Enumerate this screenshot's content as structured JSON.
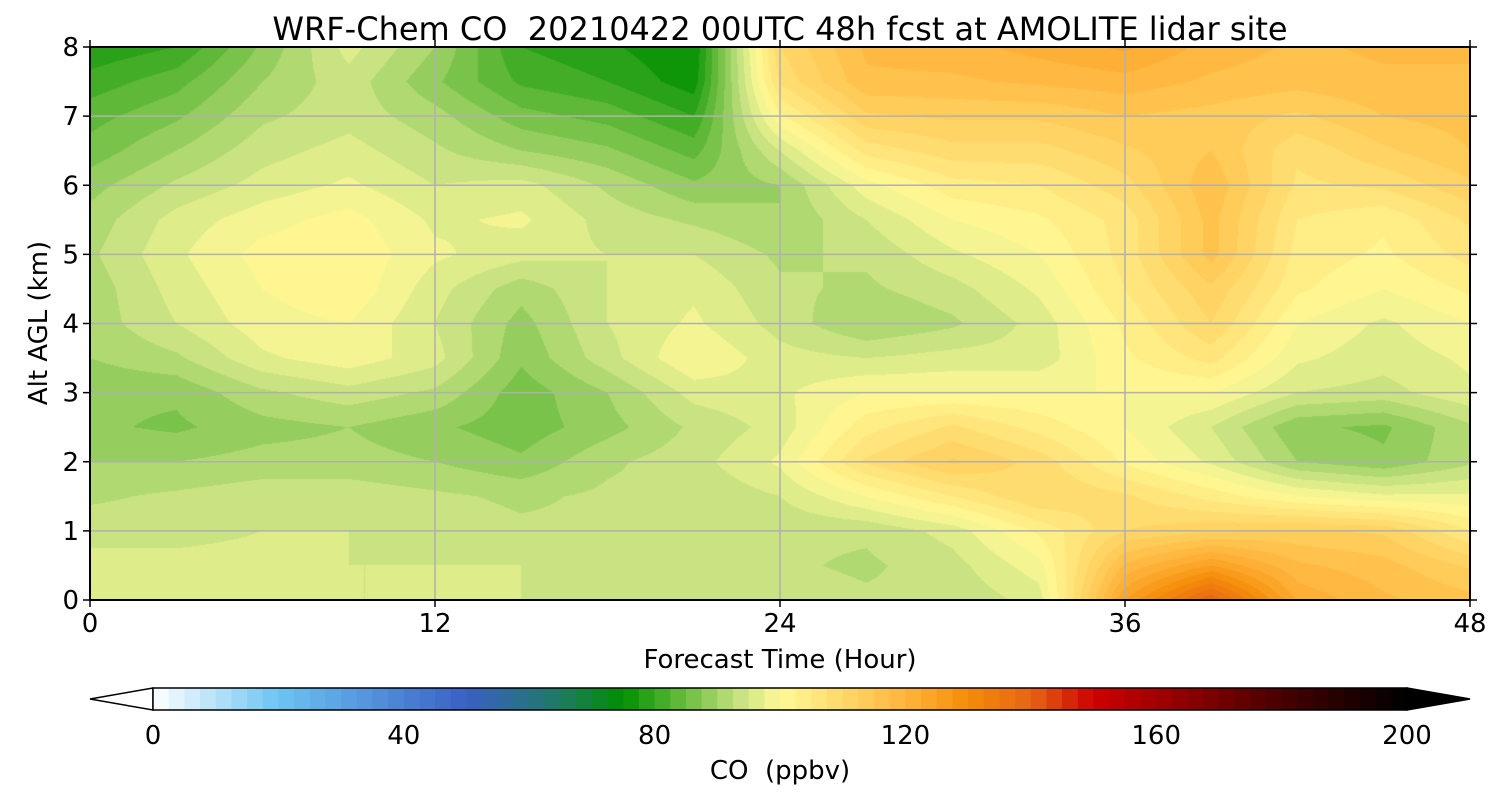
{
  "chart_data": {
    "type": "heatmap",
    "title": "WRF-Chem CO  20210422 00UTC 48h fcst at AMOLITE lidar site",
    "xlabel": "Forecast Time (Hour)",
    "ylabel": "Alt AGL (km)",
    "xlim": [
      0,
      48
    ],
    "ylim": [
      0,
      8
    ],
    "xticks": [
      0,
      12,
      24,
      36,
      48
    ],
    "yticks": [
      0,
      1,
      2,
      3,
      4,
      5,
      6,
      7,
      8
    ],
    "grid": true,
    "x": [
      0,
      3,
      6,
      9,
      12,
      15,
      18,
      21,
      24,
      27,
      30,
      33,
      36,
      39,
      42,
      45,
      48
    ],
    "y": [
      0,
      0.5,
      1,
      1.5,
      2,
      2.5,
      3,
      3.5,
      4,
      4.5,
      5,
      5.5,
      6,
      6.5,
      7,
      7.5,
      8
    ],
    "z": [
      [
        96,
        96,
        96,
        95,
        95,
        95,
        95,
        94,
        94,
        93,
        93,
        96,
        125,
        140,
        122,
        118,
        116
      ],
      [
        96,
        96,
        96,
        95,
        95,
        95,
        94,
        94,
        93,
        92,
        94,
        99,
        118,
        125,
        118,
        116,
        112
      ],
      [
        94,
        94,
        95,
        95,
        94,
        93,
        93,
        93,
        93,
        93,
        96,
        103,
        110,
        112,
        113,
        112,
        105
      ],
      [
        92,
        93,
        94,
        94,
        93,
        92,
        93,
        93,
        95,
        100,
        105,
        110,
        108,
        104,
        100,
        98,
        98
      ],
      [
        90,
        90,
        91,
        91,
        90,
        88,
        92,
        94,
        98,
        108,
        113,
        109,
        102,
        97,
        90,
        88,
        92
      ],
      [
        88,
        87,
        89,
        90,
        88,
        86,
        89,
        93,
        96,
        104,
        108,
        104,
        100,
        95,
        88,
        87,
        92
      ],
      [
        88,
        88,
        92,
        94,
        92,
        86,
        90,
        96,
        97,
        100,
        100,
        100,
        100,
        100,
        95,
        94,
        97
      ],
      [
        90,
        92,
        97,
        99,
        96,
        88,
        94,
        100,
        96,
        95,
        96,
        96,
        102,
        106,
        98,
        96,
        98
      ],
      [
        91,
        95,
        99,
        100,
        95,
        89,
        95,
        98,
        94,
        90,
        92,
        96,
        103,
        110,
        100,
        97,
        100
      ],
      [
        91,
        96,
        100,
        102,
        96,
        91,
        95,
        97,
        93,
        92,
        94,
        98,
        105,
        112,
        103,
        100,
        103
      ],
      [
        92,
        97,
        101,
        102,
        98,
        96,
        95,
        95,
        92,
        93,
        97,
        100,
        106,
        116,
        104,
        102,
        106
      ],
      [
        91,
        96,
        99,
        101,
        97,
        98,
        94,
        92,
        90,
        95,
        100,
        102,
        106,
        116,
        105,
        103,
        108
      ],
      [
        89,
        93,
        96,
        98,
        95,
        96,
        92,
        88,
        90,
        99,
        104,
        105,
        109,
        117,
        107,
        108,
        112
      ],
      [
        86,
        90,
        94,
        96,
        93,
        90,
        88,
        84,
        95,
        106,
        109,
        109,
        112,
        115,
        108,
        112,
        115
      ],
      [
        84,
        87,
        92,
        94,
        91,
        86,
        84,
        80,
        102,
        112,
        113,
        113,
        115,
        114,
        112,
        115,
        116
      ],
      [
        81,
        84,
        90,
        94,
        88,
        82,
        80,
        76,
        108,
        117,
        117,
        118,
        119,
        117,
        116,
        117,
        117
      ],
      [
        78,
        80,
        88,
        96,
        90,
        80,
        78,
        75,
        110,
        118,
        119,
        121,
        123,
        119,
        117,
        118,
        118
      ]
    ],
    "colorbar": {
      "label": "CO  (ppbv)",
      "min": 0,
      "max": 200,
      "ticks": [
        0,
        40,
        80,
        120,
        160,
        200
      ],
      "extend": "both",
      "stops": [
        {
          "value": 0,
          "color": "#ffffff"
        },
        {
          "value": 20,
          "color": "#6cc4f2"
        },
        {
          "value": 50,
          "color": "#3a5fc4"
        },
        {
          "value": 65,
          "color": "#1e7a62"
        },
        {
          "value": 75,
          "color": "#009000"
        },
        {
          "value": 85,
          "color": "#6cbe40"
        },
        {
          "value": 93,
          "color": "#c3e080"
        },
        {
          "value": 100,
          "color": "#fffa96"
        },
        {
          "value": 110,
          "color": "#ffd86a"
        },
        {
          "value": 120,
          "color": "#ffb43c"
        },
        {
          "value": 130,
          "color": "#f58c0a"
        },
        {
          "value": 140,
          "color": "#e66414"
        },
        {
          "value": 150,
          "color": "#cd0000"
        },
        {
          "value": 165,
          "color": "#8c0000"
        },
        {
          "value": 180,
          "color": "#460000"
        },
        {
          "value": 200,
          "color": "#000000"
        }
      ]
    }
  }
}
